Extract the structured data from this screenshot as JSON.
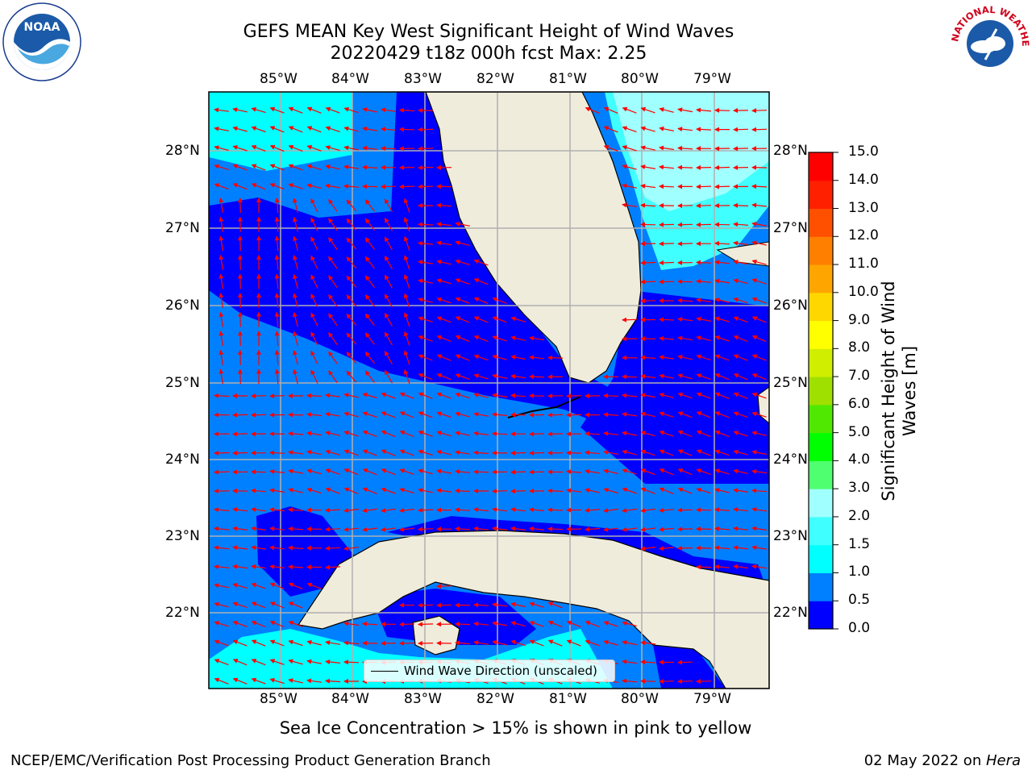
{
  "header": {
    "title_line1": "GEFS MEAN Key West Significant Height of Wind Waves",
    "title_line2": "20220429 t18z 000h fcst   Max: 2.25"
  },
  "map": {
    "lon_labels": [
      "85°W",
      "84°W",
      "83°W",
      "82°W",
      "81°W",
      "80°W",
      "79°W"
    ],
    "lat_labels": [
      "28°N",
      "27°N",
      "26°N",
      "25°N",
      "24°N",
      "23°N",
      "22°N"
    ],
    "land_color": "#efecdc",
    "arrow_color": "#ff0000",
    "wave_direction": "toward west-southwest",
    "legend_label": "Wind Wave Direction (unscaled)"
  },
  "colorbar": {
    "label_line1": "Significant Height of Wind",
    "label_line2": "Waves [m]",
    "tick_labels": [
      "0.0",
      "0.5",
      "1.0",
      "1.5",
      "2.0",
      "3.0",
      "4.0",
      "5.0",
      "6.0",
      "7.0",
      "8.0",
      "9.0",
      "10.0",
      "11.0",
      "12.0",
      "13.0",
      "14.0",
      "15.0"
    ],
    "colors": [
      "#0000ff",
      "#0080ff",
      "#00ffff",
      "#40ffff",
      "#a0ffff",
      "#50ff70",
      "#00ff00",
      "#50e800",
      "#a0e000",
      "#d0ee00",
      "#ffff00",
      "#ffd700",
      "#ffa500",
      "#ff8000",
      "#ff5000",
      "#ff2000",
      "#ff0000"
    ]
  },
  "notes": {
    "ice_note": "Sea Ice Concentration > 15% is shown in pink to yellow"
  },
  "footer": {
    "left": "NCEP/EMC/Verification Post Processing Product Generation Branch",
    "right_prefix": "02 May 2022 on ",
    "right_host": "Hera"
  },
  "logos": {
    "noaa_text": "NOAA",
    "nws_text": "NATIONAL WEATHER SERVICE"
  }
}
